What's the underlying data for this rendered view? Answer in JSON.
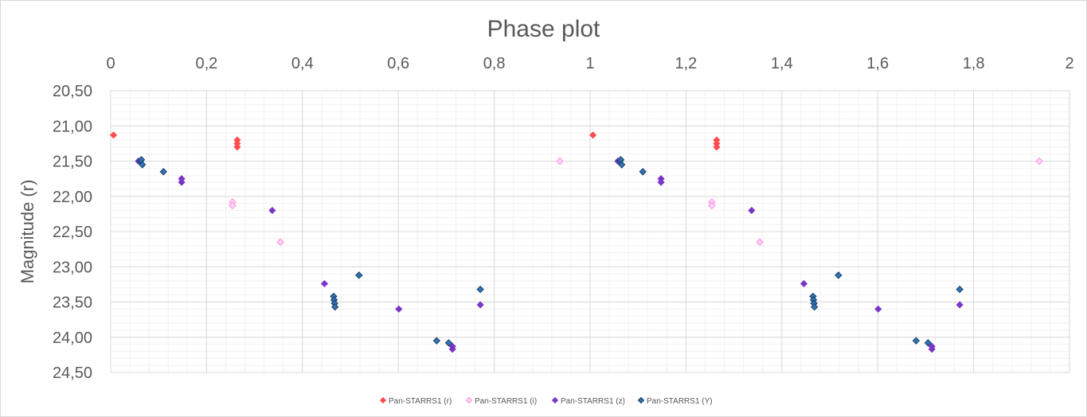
{
  "chart_data": {
    "type": "scatter",
    "title": "Phase plot",
    "xlabel": "",
    "ylabel": "Magnitude (r)",
    "xlim": [
      0,
      2
    ],
    "ylim": [
      20.5,
      24.5
    ],
    "y_inverted": true,
    "x_axis_position": "top",
    "x_ticks": [
      "0",
      "0,2",
      "0,4",
      "0,6",
      "0,8",
      "1",
      "1,2",
      "1,4",
      "1,6",
      "1,8",
      "2"
    ],
    "y_ticks": [
      "20,50",
      "21,00",
      "21,50",
      "22,00",
      "22,50",
      "23,00",
      "23,50",
      "24,00",
      "24,50"
    ],
    "grid": true,
    "legend_position": "bottom",
    "series": [
      {
        "name": "Pan-STARRS1 (r)",
        "color": "#ff4d4d",
        "marker": "diamond-filled",
        "points": [
          [
            0.006,
            21.13
          ],
          [
            0.264,
            21.2
          ],
          [
            0.264,
            21.25
          ],
          [
            0.264,
            21.3
          ],
          [
            1.006,
            21.13
          ],
          [
            1.264,
            21.2
          ],
          [
            1.264,
            21.25
          ],
          [
            1.264,
            21.3
          ]
        ]
      },
      {
        "name": "Pan-STARRS1 (i)",
        "color": "#ff99e6",
        "marker": "diamond-open",
        "points": [
          [
            0.254,
            22.08
          ],
          [
            0.254,
            22.13
          ],
          [
            0.354,
            22.65
          ],
          [
            0.937,
            21.5
          ],
          [
            1.254,
            22.08
          ],
          [
            1.254,
            22.13
          ],
          [
            1.354,
            22.65
          ],
          [
            1.937,
            21.5
          ]
        ]
      },
      {
        "name": "Pan-STARRS1 (z)",
        "color": "#7a35c8",
        "marker": "diamond-filled",
        "points": [
          [
            0.058,
            21.5
          ],
          [
            0.148,
            21.75
          ],
          [
            0.148,
            21.8
          ],
          [
            0.337,
            22.2
          ],
          [
            0.446,
            23.24
          ],
          [
            0.601,
            23.6
          ],
          [
            0.713,
            24.13
          ],
          [
            0.713,
            24.17
          ],
          [
            0.771,
            23.54
          ],
          [
            1.058,
            21.5
          ],
          [
            1.148,
            21.75
          ],
          [
            1.148,
            21.8
          ],
          [
            1.337,
            22.2
          ],
          [
            1.446,
            23.24
          ],
          [
            1.601,
            23.6
          ],
          [
            1.713,
            24.13
          ],
          [
            1.713,
            24.17
          ],
          [
            1.771,
            23.54
          ]
        ]
      },
      {
        "name": "Pan-STARRS1 (Y)",
        "color": "#2e75b6",
        "marker": "diamond-filled",
        "points": [
          [
            0.062,
            21.5
          ],
          [
            0.064,
            21.48
          ],
          [
            0.066,
            21.55
          ],
          [
            0.11,
            21.65
          ],
          [
            0.465,
            23.42
          ],
          [
            0.466,
            23.47
          ],
          [
            0.467,
            23.52
          ],
          [
            0.468,
            23.57
          ],
          [
            0.518,
            23.12
          ],
          [
            0.68,
            24.05
          ],
          [
            0.705,
            24.08
          ],
          [
            0.771,
            23.32
          ],
          [
            1.062,
            21.5
          ],
          [
            1.064,
            21.48
          ],
          [
            1.066,
            21.55
          ],
          [
            1.11,
            21.65
          ],
          [
            1.465,
            23.42
          ],
          [
            1.466,
            23.47
          ],
          [
            1.467,
            23.52
          ],
          [
            1.468,
            23.57
          ],
          [
            1.518,
            23.12
          ],
          [
            1.68,
            24.05
          ],
          [
            1.705,
            24.08
          ],
          [
            1.771,
            23.32
          ]
        ]
      }
    ]
  }
}
